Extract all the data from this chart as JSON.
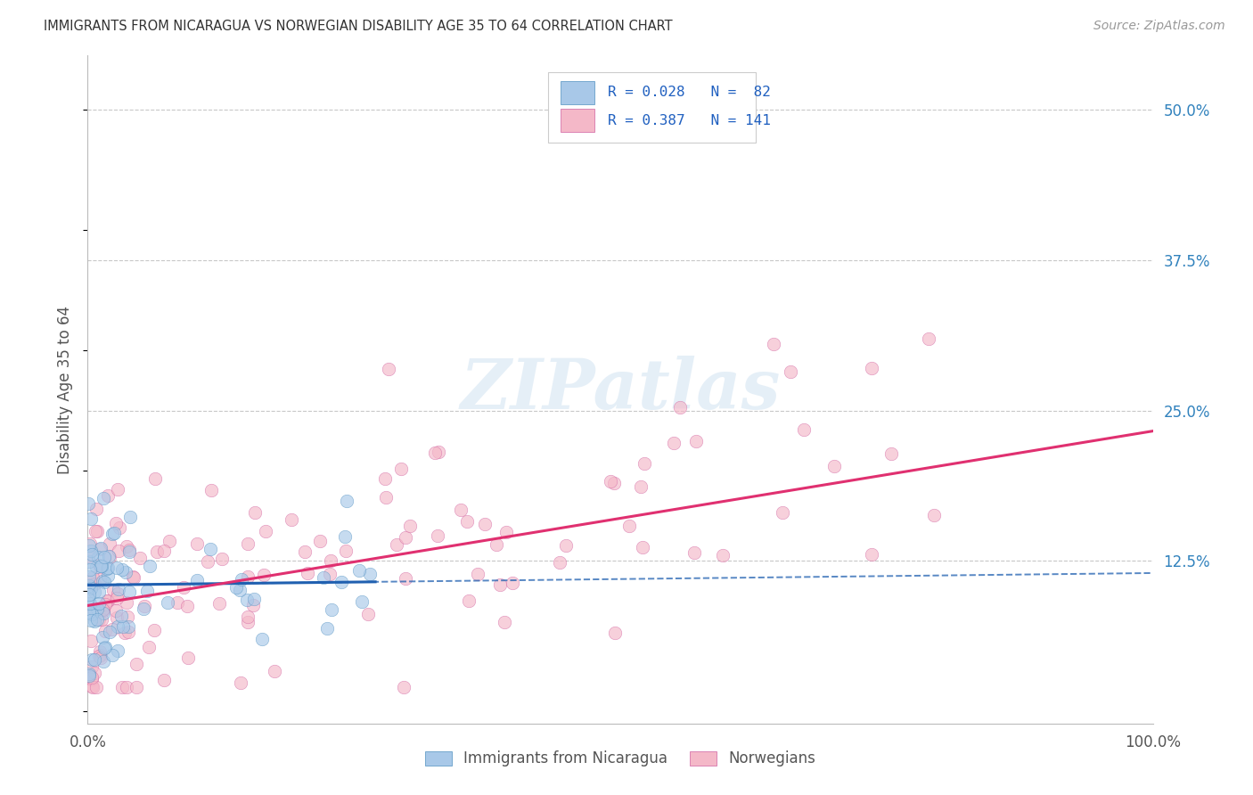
{
  "title": "IMMIGRANTS FROM NICARAGUA VS NORWEGIAN DISABILITY AGE 35 TO 64 CORRELATION CHART",
  "source": "Source: ZipAtlas.com",
  "ylabel": "Disability Age 35 to 64",
  "ylabel_right_ticks": [
    "50.0%",
    "37.5%",
    "25.0%",
    "12.5%"
  ],
  "ylabel_right_vals": [
    0.5,
    0.375,
    0.25,
    0.125
  ],
  "xlim": [
    0.0,
    1.0
  ],
  "ylim": [
    -0.01,
    0.545
  ],
  "color_nicaragua": "#a8c8e8",
  "color_norwegian": "#f4b8c8",
  "color_line_nicaragua": "#2060b0",
  "color_line_norwegian": "#e03070",
  "background_color": "#ffffff",
  "grid_color": "#c8c8c8"
}
